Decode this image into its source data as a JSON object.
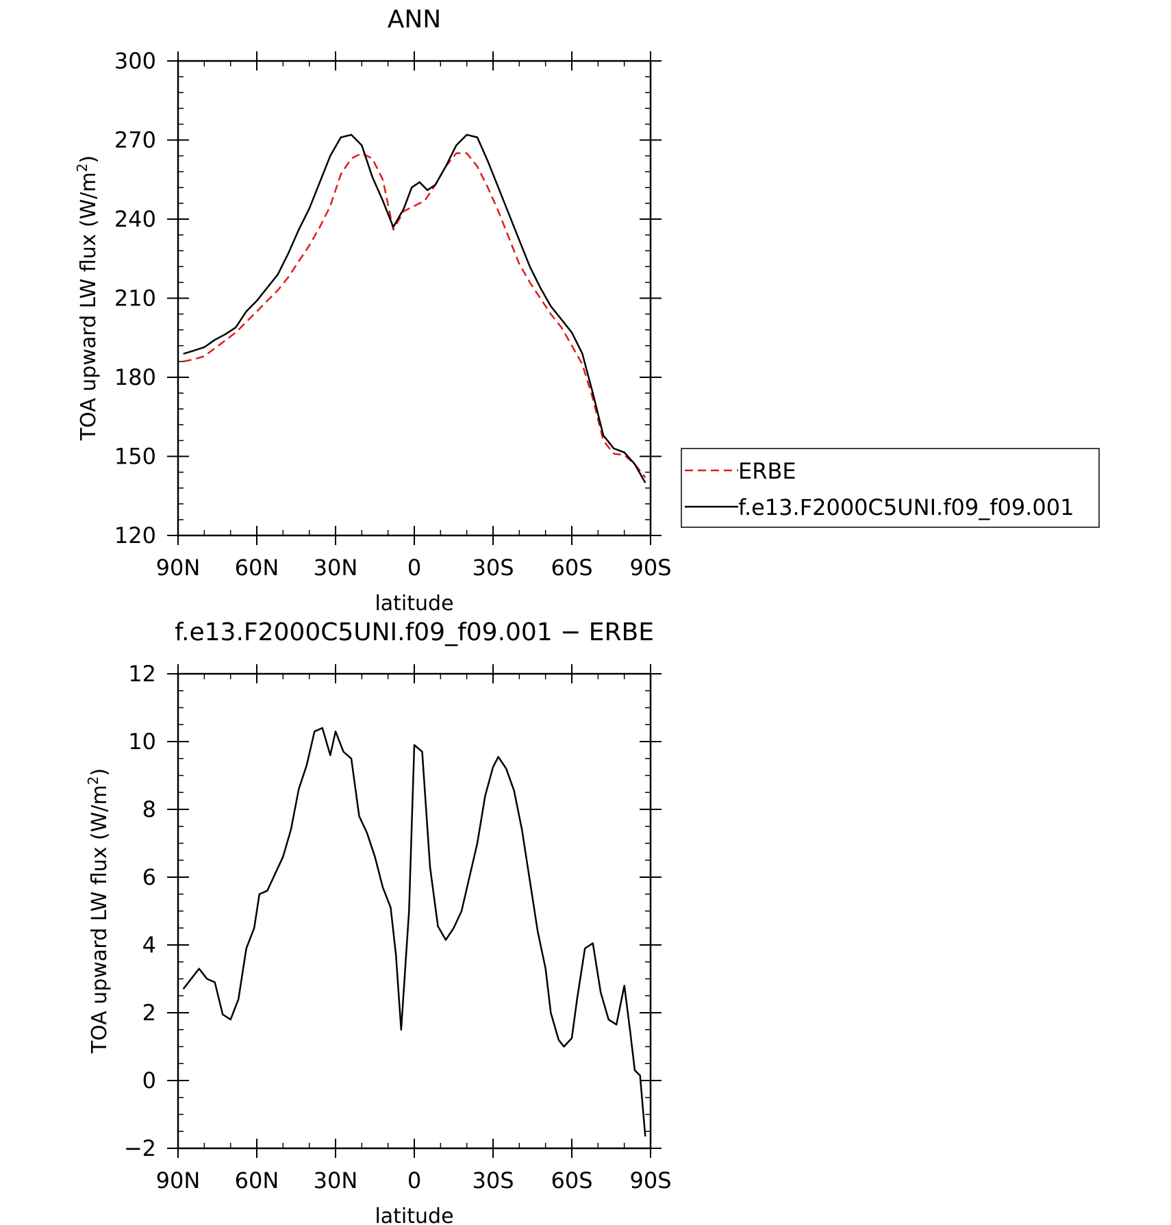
{
  "chart_data": [
    {
      "type": "line",
      "title": "ANN",
      "xlabel": "latitude",
      "ylabel": "TOA upward LW flux (W/m²)",
      "ylabel_parts": {
        "main": "TOA upward LW flux (W/m",
        "sup": "2",
        "close": ")"
      },
      "xlim": [
        -90,
        90
      ],
      "ylim": [
        120,
        300
      ],
      "x_direction": "North to South (90N on left, 90S on right)",
      "xticks": [
        -90,
        -60,
        -30,
        0,
        30,
        60,
        90
      ],
      "xtick_labels": [
        "90N",
        "60N",
        "30N",
        "0",
        "30S",
        "60S",
        "90S"
      ],
      "yticks": [
        120,
        150,
        180,
        210,
        240,
        270,
        300
      ],
      "ytick_labels": [
        "120",
        "150",
        "180",
        "210",
        "240",
        "270",
        "300"
      ],
      "legend": {
        "placement": "right of plot",
        "entries": [
          "ERBE",
          "f.e13.F2000C5UNI.f09_f09.001"
        ]
      },
      "series": [
        {
          "name": "ERBE",
          "color": "#e31a1c",
          "dash": true,
          "x": [
            -88,
            -84,
            -80,
            -76,
            -72,
            -68,
            -64,
            -60,
            -56,
            -52,
            -48,
            -44,
            -40,
            -36,
            -32,
            -28,
            -24,
            -20,
            -16,
            -12,
            -8,
            -4,
            0,
            4,
            8,
            12,
            16,
            20,
            24,
            28,
            32,
            36,
            40,
            44,
            48,
            52,
            56,
            60,
            64,
            68,
            72,
            76,
            80,
            84,
            88
          ],
          "y": [
            186,
            186.8,
            188,
            191,
            194,
            197,
            201,
            205,
            209,
            213,
            218,
            224,
            230,
            237,
            245,
            257,
            263,
            265,
            263,
            255,
            236,
            243,
            245,
            247,
            253,
            260,
            265,
            265,
            260,
            252,
            243,
            233,
            223,
            216,
            210,
            204,
            199,
            192,
            185,
            172,
            156,
            151,
            150.5,
            147,
            142
          ]
        },
        {
          "name": "f.e13.F2000C5UNI.f09_f09.001",
          "color": "#000000",
          "dash": false,
          "x": [
            -88,
            -84,
            -80,
            -76,
            -72,
            -68,
            -64,
            -60,
            -56,
            -52,
            -48,
            -44,
            -40,
            -36,
            -32,
            -28,
            -24,
            -20,
            -16,
            -12,
            -8,
            -4,
            -1,
            2,
            5,
            8,
            12,
            16,
            20,
            24,
            28,
            32,
            36,
            40,
            44,
            48,
            52,
            56,
            60,
            64,
            68,
            72,
            76,
            80,
            84,
            88
          ],
          "y": [
            188.9,
            190.1,
            191.4,
            194.2,
            196.3,
            198.9,
            205,
            209,
            214,
            219,
            227,
            236,
            244,
            254,
            264,
            271,
            272,
            268,
            256,
            247,
            237,
            244,
            252,
            254,
            251,
            253,
            260,
            268,
            272,
            271,
            262,
            252,
            242,
            232,
            222,
            214,
            207,
            202,
            197,
            189,
            174,
            158,
            153,
            151.5,
            147,
            140
          ]
        }
      ]
    },
    {
      "type": "line",
      "title": "f.e13.F2000C5UNI.f09_f09.001 − ERBE",
      "xlabel": "latitude",
      "ylabel": "TOA upward LW flux (W/m²)",
      "ylabel_parts": {
        "main": "TOA upward LW flux (W/m",
        "sup": "2",
        "close": ")"
      },
      "xlim": [
        -90,
        90
      ],
      "ylim": [
        -2,
        12
      ],
      "xticks": [
        -90,
        -60,
        -30,
        0,
        30,
        60,
        90
      ],
      "xtick_labels": [
        "90N",
        "60N",
        "30N",
        "0",
        "30S",
        "60S",
        "90S"
      ],
      "yticks": [
        -2,
        0,
        2,
        4,
        6,
        8,
        10,
        12
      ],
      "ytick_labels": [
        "−2",
        "0",
        "2",
        "4",
        "6",
        "8",
        "10",
        "12"
      ],
      "series": [
        {
          "color": "#000000",
          "dash": false,
          "x": [
            -88,
            -82,
            -79,
            -76,
            -73,
            -70,
            -67,
            -64,
            -61,
            -59,
            -56,
            -53,
            -50,
            -47,
            -44,
            -41,
            -38,
            -35,
            -32,
            -30,
            -27,
            -24,
            -21,
            -18,
            -15,
            -12,
            -9,
            -7,
            -5,
            -2,
            0,
            3,
            6,
            9,
            12,
            15,
            18,
            21,
            24,
            27,
            30,
            32,
            35,
            38,
            41,
            44,
            47,
            50,
            52,
            55,
            57,
            60,
            62,
            65,
            68,
            71,
            74,
            77,
            80,
            82,
            84,
            86,
            88
          ],
          "y": [
            2.7,
            3.3,
            3.0,
            2.9,
            1.95,
            1.8,
            2.4,
            3.9,
            4.5,
            5.5,
            5.6,
            6.1,
            6.6,
            7.4,
            8.6,
            9.3,
            10.3,
            10.4,
            9.6,
            10.3,
            9.7,
            9.5,
            7.8,
            7.3,
            6.6,
            5.7,
            5.1,
            3.7,
            1.5,
            5.0,
            9.9,
            9.7,
            6.3,
            4.55,
            4.15,
            4.5,
            5.0,
            6.0,
            7.0,
            8.4,
            9.25,
            9.55,
            9.2,
            8.55,
            7.4,
            5.9,
            4.4,
            3.3,
            2.0,
            1.2,
            1.0,
            1.25,
            2.4,
            3.9,
            4.05,
            2.6,
            1.8,
            1.65,
            2.8,
            1.6,
            0.3,
            0.15,
            -1.65
          ]
        }
      ]
    }
  ]
}
